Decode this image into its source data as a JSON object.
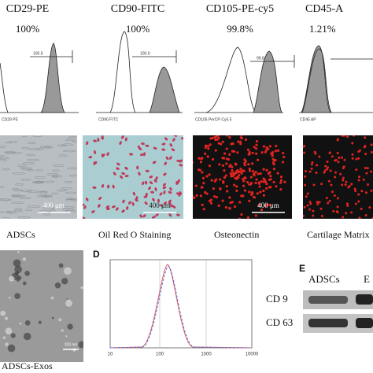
{
  "flow_panels": [
    {
      "title": "CD29-PE",
      "percent": "100%",
      "gate": "100.0",
      "axis_label": "CD29 PE"
    },
    {
      "title": "CD90-FITC",
      "percent": "100%",
      "gate": "100.0",
      "axis_label": "CD90 FITC"
    },
    {
      "title": "CD105-PE-cy5",
      "percent": "99.8%",
      "gate": "99.8",
      "axis_label": "CD105 PerCP-Cy5.5"
    },
    {
      "title": "CD45-A",
      "percent": "1.21%",
      "axis_label": "CD45 AP"
    }
  ],
  "micrographs": [
    {
      "caption": "ADSCs",
      "scale_bar": "400 μm"
    },
    {
      "caption": "Oil Red O Staining",
      "scale_bar": "400 μm"
    },
    {
      "caption": "Osteonectin",
      "scale_bar": "400 μm"
    },
    {
      "caption": "Cartilage Matrix"
    }
  ],
  "tem": {
    "caption": "ADSCs-Exos",
    "scale_bar": "100 nm"
  },
  "panel_d": {
    "label": "D",
    "x_tick_labels": [
      "10",
      "100",
      "1000",
      "10000"
    ]
  },
  "panel_e": {
    "label": "E",
    "columns": [
      "ADSCs",
      "E"
    ],
    "rows": [
      "CD 9",
      "CD 63"
    ]
  }
}
